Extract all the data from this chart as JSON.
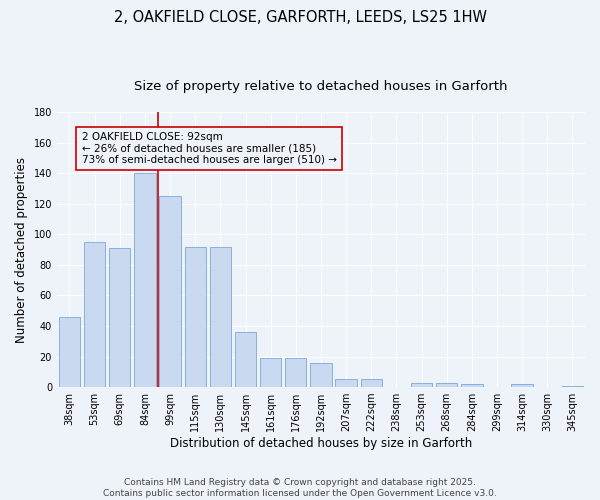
{
  "title_line1": "2, OAKFIELD CLOSE, GARFORTH, LEEDS, LS25 1HW",
  "title_line2": "Size of property relative to detached houses in Garforth",
  "xlabel": "Distribution of detached houses by size in Garforth",
  "ylabel": "Number of detached properties",
  "categories": [
    "38sqm",
    "53sqm",
    "69sqm",
    "84sqm",
    "99sqm",
    "115sqm",
    "130sqm",
    "145sqm",
    "161sqm",
    "176sqm",
    "192sqm",
    "207sqm",
    "222sqm",
    "238sqm",
    "253sqm",
    "268sqm",
    "284sqm",
    "299sqm",
    "314sqm",
    "330sqm",
    "345sqm"
  ],
  "values": [
    46,
    95,
    91,
    140,
    125,
    92,
    92,
    36,
    19,
    19,
    16,
    5,
    5,
    0,
    3,
    3,
    2,
    0,
    2,
    0,
    1
  ],
  "bar_color": "#c9d9f0",
  "bar_edge_color": "#7ca9d8",
  "ylim": [
    0,
    180
  ],
  "yticks": [
    0,
    20,
    40,
    60,
    80,
    100,
    120,
    140,
    160,
    180
  ],
  "vline_x_index": 4,
  "vline_color": "#cc0000",
  "annotation_line1": "2 OAKFIELD CLOSE: 92sqm",
  "annotation_line2": "← 26% of detached houses are smaller (185)",
  "annotation_line3": "73% of semi-detached houses are larger (510) →",
  "footnote_line1": "Contains HM Land Registry data © Crown copyright and database right 2025.",
  "footnote_line2": "Contains public sector information licensed under the Open Government Licence v3.0.",
  "bg_color": "#eef2f9",
  "grid_color": "#ffffff",
  "title_fontsize": 10.5,
  "subtitle_fontsize": 9.5,
  "axis_label_fontsize": 8.5,
  "tick_fontsize": 7,
  "annotation_fontsize": 7.5,
  "footnote_fontsize": 6.5
}
